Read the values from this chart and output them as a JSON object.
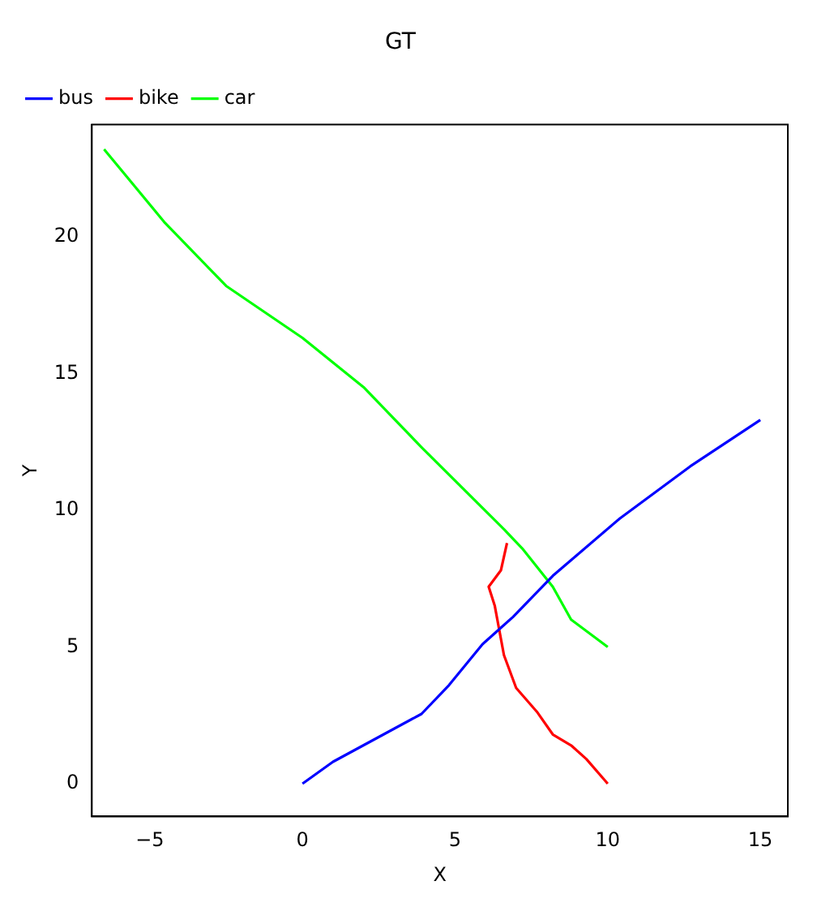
{
  "chart_data": {
    "type": "line",
    "title": "GT",
    "xlabel": "X",
    "ylabel": "Y",
    "legend": "top left",
    "grid": false,
    "marker": "none",
    "line_style": "solid",
    "xlim": [
      -6.9,
      15.9
    ],
    "ylim": [
      -1.2,
      24.1
    ],
    "xticks": [
      -5,
      0,
      5,
      10,
      15
    ],
    "yticks": [
      0,
      5,
      10,
      15,
      20
    ],
    "series": [
      {
        "name": "bus",
        "color": "#0000ff",
        "x": [
          0,
          1,
          3.9,
          4.8,
          5.9,
          6.9,
          8.2,
          10.4,
          12.7,
          15
        ],
        "values": [
          0,
          0.8,
          2.55,
          3.6,
          5.1,
          6.1,
          7.6,
          9.7,
          11.6,
          13.3
        ]
      },
      {
        "name": "bike",
        "color": "#ff0000",
        "x": [
          10,
          9.3,
          8.8,
          8.2,
          7.7,
          7.0,
          6.6,
          6.3,
          6.1,
          6.5,
          6.7
        ],
        "values": [
          0,
          0.9,
          1.4,
          1.8,
          2.6,
          3.5,
          4.7,
          6.5,
          7.2,
          7.8,
          8.8
        ]
      },
      {
        "name": "car",
        "color": "#00ff00",
        "x": [
          10,
          8.8,
          8.2,
          7.2,
          6.6,
          3.9,
          2,
          0,
          -2.5,
          -4.5,
          -6.5
        ],
        "values": [
          5,
          6,
          7.2,
          8.6,
          9.3,
          12.3,
          14.5,
          16.3,
          18.2,
          20.5,
          23.2
        ]
      }
    ]
  }
}
